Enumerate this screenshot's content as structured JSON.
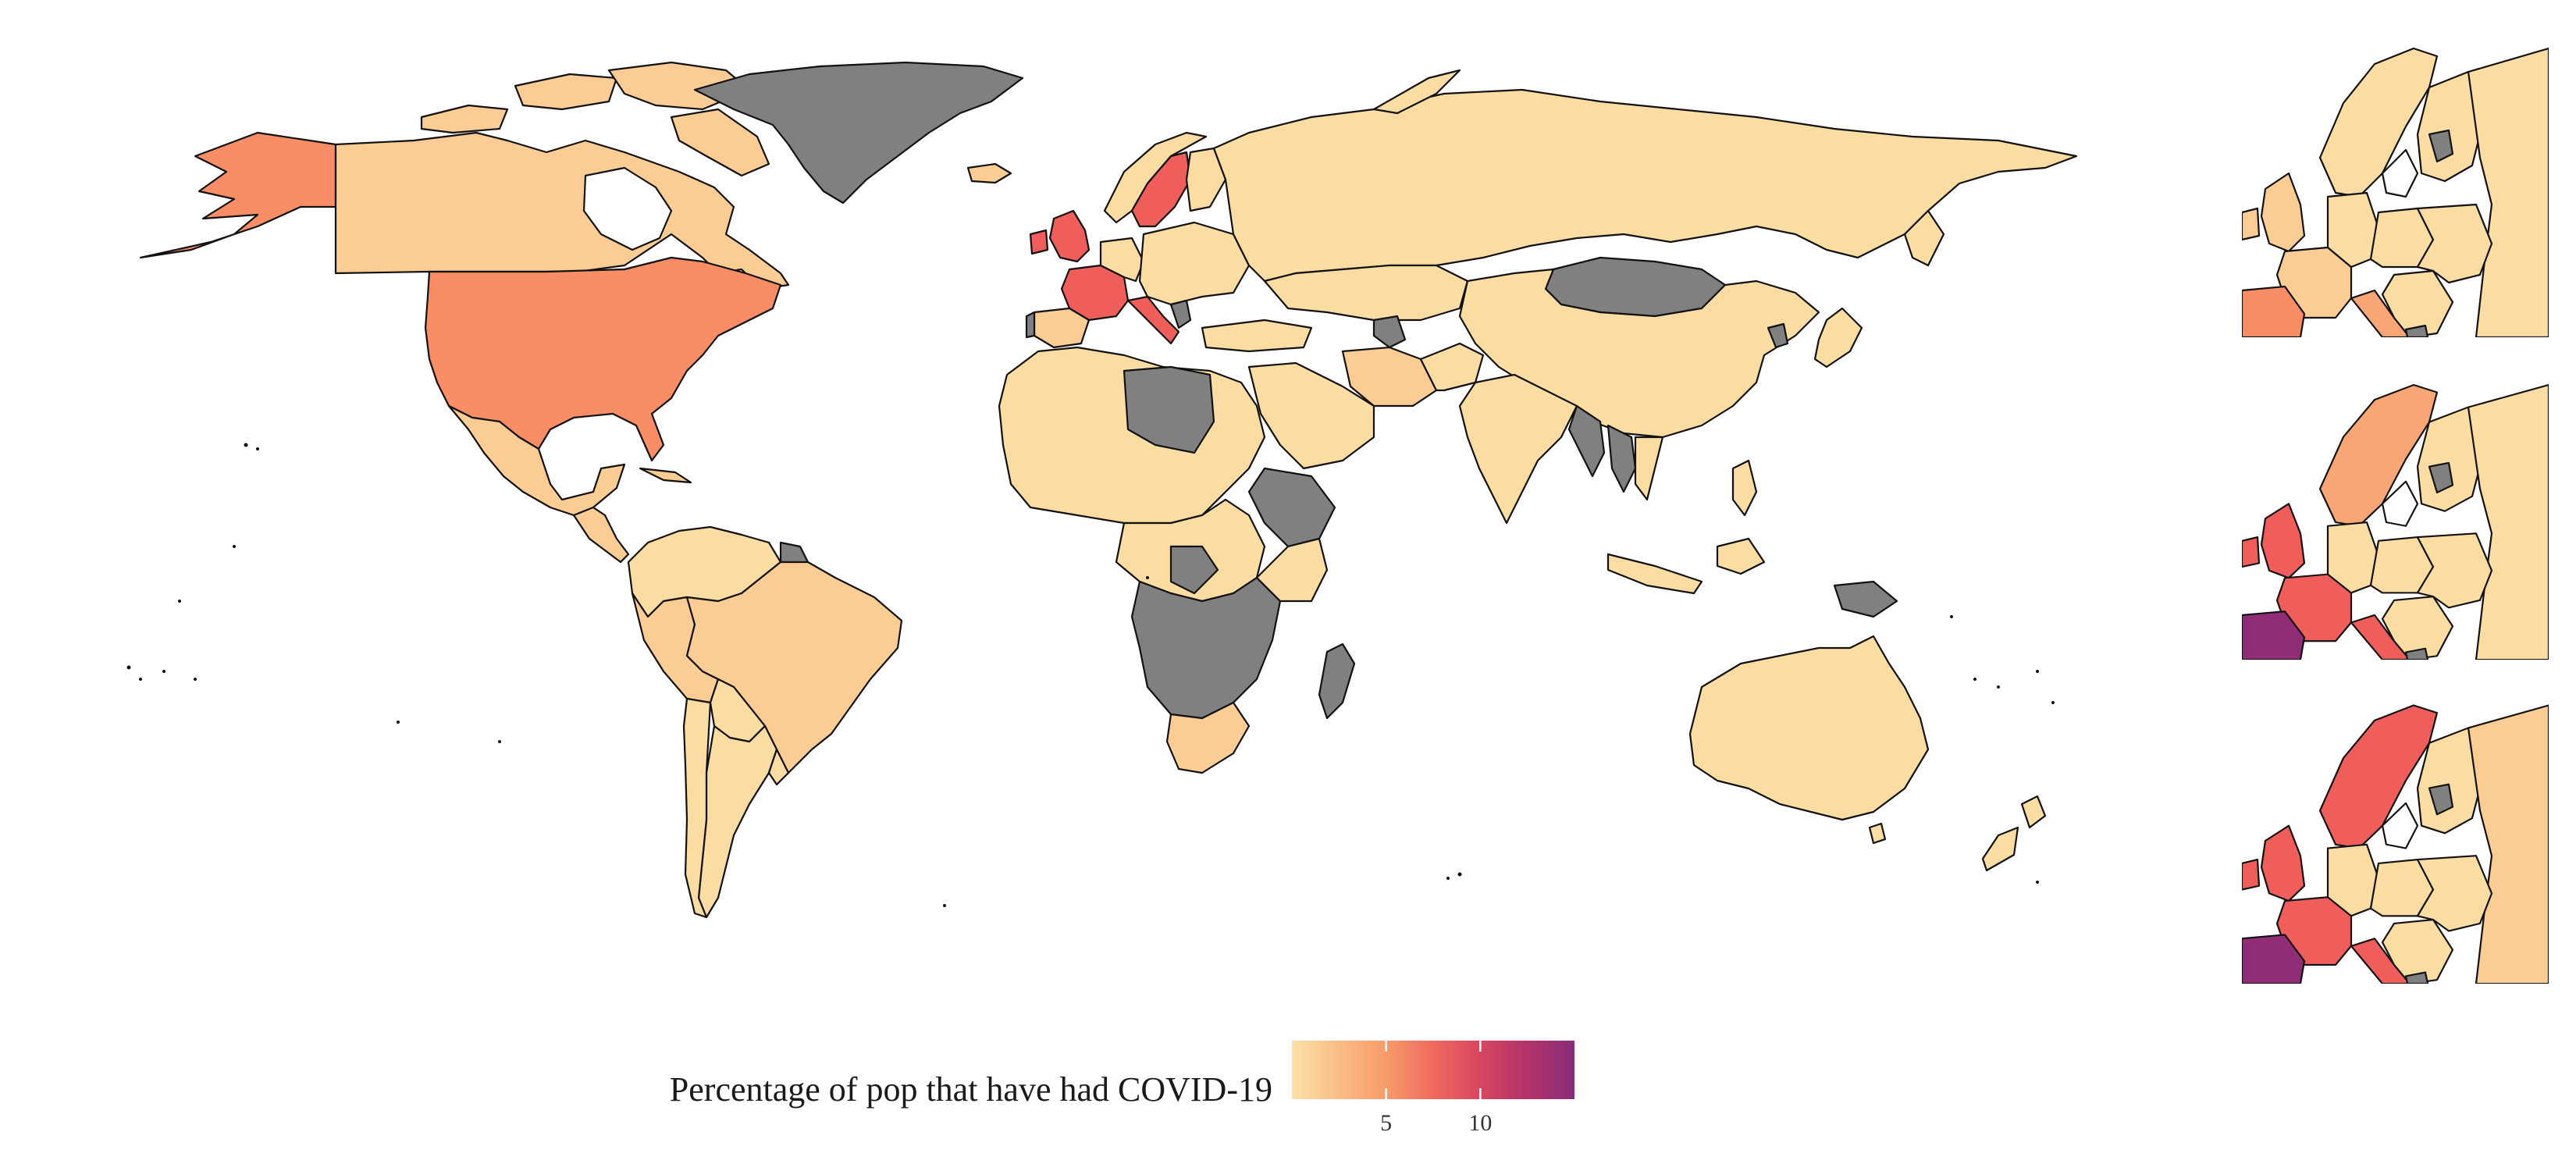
{
  "legend": {
    "title": "Percentage of pop that have had COVID-19",
    "ticks": [
      {
        "label": "5",
        "value": 5
      },
      {
        "label": "10",
        "value": 10
      }
    ],
    "scale_min": 0,
    "scale_max": 15,
    "gradient_colors": [
      "#fce0a6",
      "#fbbd86",
      "#f89b6a",
      "#ef6a5f",
      "#d7465f",
      "#b1336a",
      "#8a2c79"
    ]
  },
  "colors": {
    "missing": "#808080",
    "very_low": "#fbdca2",
    "low": "#fbcc93",
    "mid": "#f9a677",
    "mid_high": "#f98e66",
    "high": "#ef5e5b",
    "very_high": "#8f2e77",
    "ocean": "#ffffff",
    "border": "#111111"
  },
  "map_data": {
    "type": "choropleth",
    "main_map": "world",
    "inset_maps": [
      "europe-1",
      "europe-2",
      "europe-3"
    ],
    "regions": [
      {
        "name": "USA",
        "color_key": "mid_high"
      },
      {
        "name": "Canada",
        "color_key": "low"
      },
      {
        "name": "Alaska",
        "color_key": "mid_high"
      },
      {
        "name": "Greenland",
        "color_key": "missing"
      },
      {
        "name": "Mexico",
        "color_key": "low"
      },
      {
        "name": "Brazil",
        "color_key": "low"
      },
      {
        "name": "Peru",
        "color_key": "low"
      },
      {
        "name": "Russia",
        "color_key": "very_low"
      },
      {
        "name": "China",
        "color_key": "very_low"
      },
      {
        "name": "Mongolia",
        "color_key": "missing"
      },
      {
        "name": "Australia",
        "color_key": "very_low"
      },
      {
        "name": "Sweden",
        "color_key": "high"
      },
      {
        "name": "United Kingdom",
        "color_key": "high"
      },
      {
        "name": "France",
        "color_key": "high"
      },
      {
        "name": "Italy",
        "color_key": "high"
      },
      {
        "name": "Spain (late panels)",
        "color_key": "very_high"
      },
      {
        "name": "Libya",
        "color_key": "missing"
      },
      {
        "name": "Madagascar",
        "color_key": "missing"
      }
    ]
  }
}
